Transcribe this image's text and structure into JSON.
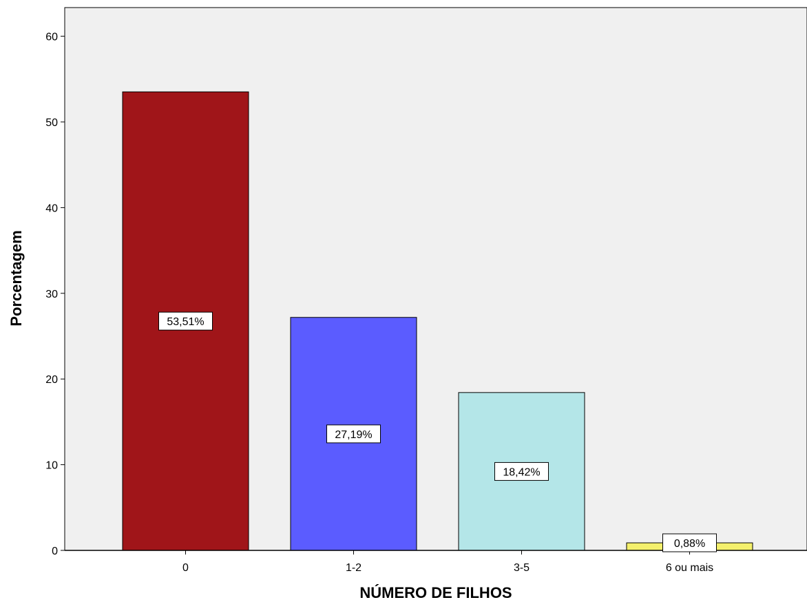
{
  "chart_data": {
    "type": "bar",
    "title": "",
    "xlabel": "NÚMERO DE FILHOS",
    "ylabel": "Porcentagem",
    "categories": [
      "0",
      "1-2",
      "3-5",
      "6 ou mais"
    ],
    "values": [
      53.51,
      27.19,
      18.42,
      0.88
    ],
    "data_labels": [
      "53,51%",
      "27,19%",
      "18,42%",
      "0,88%"
    ],
    "colors": [
      "#a01519",
      "#5b5cff",
      "#b4e6e8",
      "#f4f06c"
    ],
    "ylim": [
      0,
      63
    ],
    "yticks": [
      0,
      10,
      20,
      30,
      40,
      50,
      60
    ],
    "ytick_labels": [
      "0",
      "10",
      "20",
      "30",
      "40",
      "50",
      "60"
    ],
    "grid": false,
    "legend": "none",
    "plot_background": "#f0f0f0"
  }
}
